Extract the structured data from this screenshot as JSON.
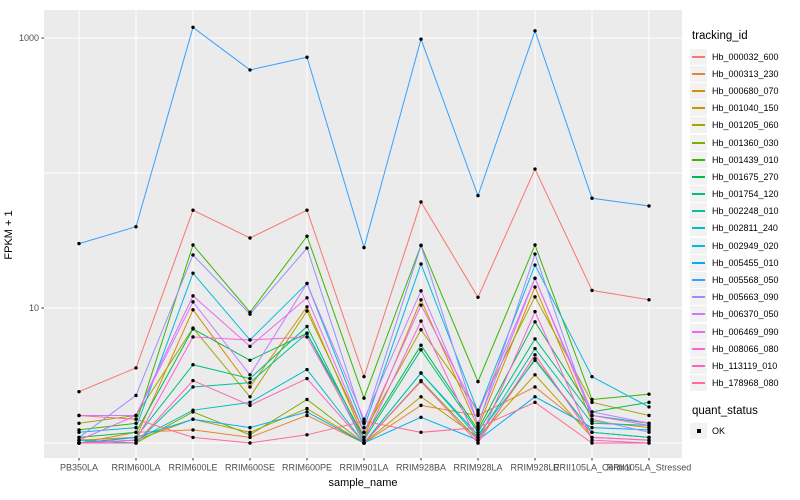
{
  "chart_data": {
    "type": "line",
    "title": "",
    "xlabel": "sample_name",
    "ylabel": "FPKM + 1",
    "y_scale": "log10",
    "ylim": [
      0.8,
      1600
    ],
    "grid": "on",
    "legend_position": "right",
    "legend_title": "tracking_id",
    "legend2_title": "quant_status",
    "legend2_items": [
      "OK"
    ],
    "point_color": "#000000",
    "panel_background": "#EBEBEB",
    "gridline_color": "#FFFFFF",
    "tick_label_color": "#4D4D4D",
    "y_tick_labels": [
      {
        "label": "1000",
        "value": 1000
      },
      {
        "label": "10",
        "value": 10
      }
    ],
    "y_gridlines": [
      1,
      10,
      100,
      1000
    ],
    "categories": [
      "PB350LA",
      "RRIM600LA",
      "RRIM600LE",
      "RRIM600SE",
      "RRIM600PE",
      "RRIM901LA",
      "RRIM928BA",
      "RRIM928LA",
      "RRIM928LE",
      "RRII105LA_Control",
      "RRII105LA_Stressed"
    ],
    "series": [
      {
        "name": "Hb_000032_600",
        "color": "#F8766D",
        "values": [
          2.4,
          3.6,
          53,
          33,
          53,
          3.1,
          61,
          12,
          107,
          13.5,
          11.5
        ]
      },
      {
        "name": "Hb_000313_230",
        "color": "#EA8331",
        "values": [
          1.0,
          1.2,
          1.25,
          1.1,
          1.6,
          1.0,
          1.9,
          1.6,
          2.6,
          1.2,
          1.1
        ]
      },
      {
        "name": "Hb_000680_070",
        "color": "#D89000",
        "values": [
          1.05,
          1.1,
          9.7,
          2.6,
          10.2,
          1.1,
          11.5,
          1.3,
          14.3,
          1.45,
          1.3
        ]
      },
      {
        "name": "Hb_001040_150",
        "color": "#C09B00",
        "values": [
          1.0,
          1.05,
          1.5,
          1.2,
          1.8,
          1.0,
          2.2,
          1.1,
          3.2,
          1.1,
          1.05
        ]
      },
      {
        "name": "Hb_001205_060",
        "color": "#A3A500",
        "values": [
          1.4,
          1.6,
          7.1,
          2.2,
          9.5,
          1.2,
          6.9,
          1.75,
          12.1,
          2.0,
          1.6
        ]
      },
      {
        "name": "Hb_001360_030",
        "color": "#7CAE00",
        "values": [
          1.0,
          1.0,
          1.7,
          1.15,
          2.1,
          1.0,
          2.9,
          1.05,
          4.2,
          1.2,
          1.1
        ]
      },
      {
        "name": "Hb_001439_010",
        "color": "#39B600",
        "values": [
          1.25,
          1.4,
          29.3,
          9.3,
          34,
          2.15,
          29.2,
          2.85,
          29.3,
          2.1,
          2.3
        ]
      },
      {
        "name": "Hb_001675_270",
        "color": "#00BB4E",
        "values": [
          1.1,
          1.2,
          7.0,
          4.1,
          6.5,
          1.1,
          5.3,
          1.25,
          7.9,
          1.7,
          2.0
        ]
      },
      {
        "name": "Hb_001754_120",
        "color": "#00BF7D",
        "values": [
          1.0,
          1.1,
          3.8,
          3.0,
          7.3,
          1.05,
          4.9,
          1.2,
          5.9,
          1.6,
          1.4
        ]
      },
      {
        "name": "Hb_002248_010",
        "color": "#00C1A3",
        "values": [
          1.05,
          1.0,
          2.6,
          2.8,
          6.5,
          1.0,
          3.3,
          1.1,
          5.0,
          1.4,
          1.35
        ]
      },
      {
        "name": "Hb_002811_240",
        "color": "#00BFC4",
        "values": [
          1.0,
          1.05,
          1.75,
          2.0,
          3.5,
          1.0,
          3.3,
          1.15,
          4.1,
          1.2,
          1.1
        ]
      },
      {
        "name": "Hb_002949_020",
        "color": "#00BAE0",
        "values": [
          1.2,
          1.3,
          18.1,
          5.8,
          15.2,
          1.3,
          21.2,
          1.7,
          20.8,
          3.1,
          1.85
        ]
      },
      {
        "name": "Hb_005455_010",
        "color": "#00B0F6",
        "values": [
          1.0,
          1.1,
          1.5,
          1.3,
          1.7,
          1.0,
          1.55,
          1.05,
          2.2,
          1.3,
          1.25
        ]
      },
      {
        "name": "Hb_005568_050",
        "color": "#35A2FF",
        "values": [
          30,
          40,
          1200,
          580,
          720,
          28,
          980,
          68,
          1130,
          65,
          57
        ]
      },
      {
        "name": "Hb_005663_090",
        "color": "#9590FF",
        "values": [
          1.1,
          2.25,
          24.7,
          9.0,
          27.8,
          1.4,
          29.0,
          1.35,
          25.1,
          1.5,
          1.2
        ]
      },
      {
        "name": "Hb_006370_050",
        "color": "#C77CFF",
        "values": [
          1.6,
          1.6,
          11.1,
          3.2,
          15.2,
          1.5,
          13.4,
          1.4,
          16.6,
          1.7,
          1.4
        ]
      },
      {
        "name": "Hb_006469_090",
        "color": "#E76BF3",
        "values": [
          1.05,
          1.6,
          12.3,
          5.2,
          11.9,
          1.2,
          10.5,
          1.65,
          16.6,
          1.6,
          1.35
        ]
      },
      {
        "name": "Hb_008066_080",
        "color": "#FA62DB",
        "values": [
          1.0,
          1.05,
          6.1,
          5.8,
          6.1,
          1.05,
          8.0,
          1.0,
          9.4,
          1.05,
          1.0
        ]
      },
      {
        "name": "Hb_113119_010",
        "color": "#FF62BC",
        "values": [
          1.0,
          1.0,
          2.9,
          1.9,
          3.0,
          1.0,
          2.85,
          1.0,
          4.5,
          1.1,
          1.05
        ]
      },
      {
        "name": "Hb_178968_080",
        "color": "#FF6A98",
        "values": [
          1.6,
          1.5,
          1.1,
          1.0,
          1.15,
          1.45,
          1.2,
          1.3,
          2.0,
          1.0,
          1.0
        ]
      }
    ]
  }
}
